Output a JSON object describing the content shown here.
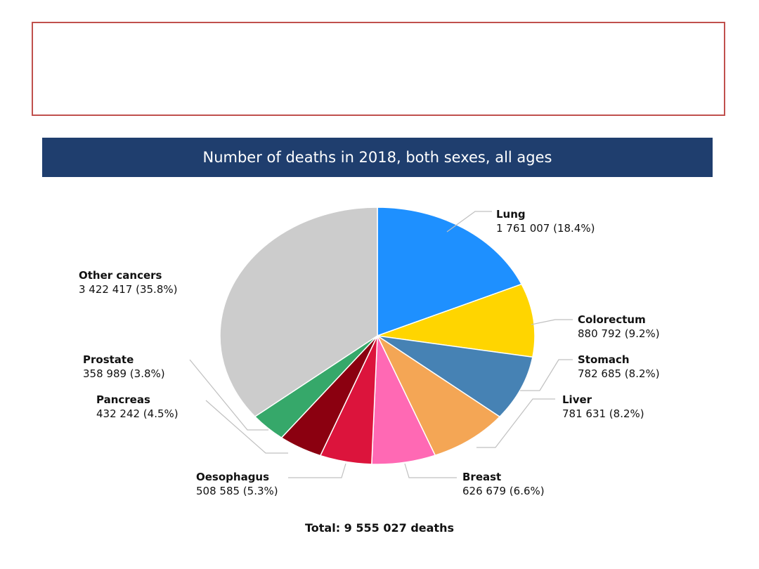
{
  "chart_data": {
    "type": "pie",
    "title": "Number of deaths in 2018, both sexes, all ages",
    "slices": [
      {
        "name": "Lung",
        "value": 1761007,
        "label": "1 761 007 (18.4%)",
        "color": "#1e90ff"
      },
      {
        "name": "Colorectum",
        "value": 880792,
        "label": "880 792 (9.2%)",
        "color": "#ffd500"
      },
      {
        "name": "Stomach",
        "value": 782685,
        "label": "782 685 (8.2%)",
        "color": "#4682b4"
      },
      {
        "name": "Liver",
        "value": 781631,
        "label": "781 631 (8.2%)",
        "color": "#f4a655"
      },
      {
        "name": "Breast",
        "value": 626679,
        "label": "626 679 (6.6%)",
        "color": "#ff69b4"
      },
      {
        "name": "Oesophagus",
        "value": 508585,
        "label": "508 585 (5.3%)",
        "color": "#dc143c"
      },
      {
        "name": "Pancreas",
        "value": 432242,
        "label": "432 242 (4.5%)",
        "color": "#8b0010"
      },
      {
        "name": "Prostate",
        "value": 358989,
        "label": "358 989 (3.8%)",
        "color": "#36a86a"
      },
      {
        "name": "Other cancers",
        "value": 3422417,
        "label": "3 422 417 (35.8%)",
        "color": "#cccccc"
      }
    ],
    "total_label": "Total: 9 555 027 deaths"
  }
}
